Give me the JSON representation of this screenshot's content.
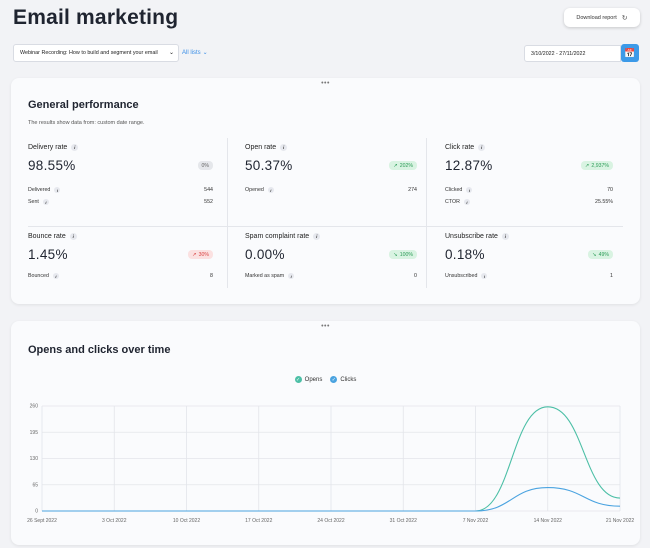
{
  "header": {
    "title": "Email marketing",
    "download_label": "Download report"
  },
  "filters": {
    "campaign_value": "Webinar Recording: How to build and segment your email",
    "all_lists_label": "All lists",
    "date_range": "3/10/2022 - 27/11/2022"
  },
  "performance": {
    "title": "General performance",
    "subtitle": "The results show data from: custom date range.",
    "metrics": [
      {
        "title": "Delivery rate",
        "value": "98.55%",
        "badge": "0%",
        "badge_type": "grey",
        "rows": [
          {
            "label": "Delivered",
            "value": "544"
          },
          {
            "label": "Sent",
            "value": "552"
          }
        ]
      },
      {
        "title": "Open rate",
        "value": "50.37%",
        "badge": "202%",
        "badge_type": "green",
        "badge_dir": "up",
        "rows": [
          {
            "label": "Opened",
            "value": "274"
          }
        ]
      },
      {
        "title": "Click rate",
        "value": "12.87%",
        "badge": "2,937%",
        "badge_type": "green",
        "badge_dir": "up",
        "rows": [
          {
            "label": "Clicked",
            "value": "70"
          },
          {
            "label": "CTOR",
            "value": "25.55%"
          }
        ]
      },
      {
        "title": "Bounce rate",
        "value": "1.45%",
        "badge": "30%",
        "badge_type": "red",
        "badge_dir": "up",
        "rows": [
          {
            "label": "Bounced",
            "value": "8"
          }
        ]
      },
      {
        "title": "Spam complaint rate",
        "value": "0.00%",
        "badge": "100%",
        "badge_type": "green",
        "badge_dir": "down",
        "rows": [
          {
            "label": "Marked as spam",
            "value": "0"
          }
        ]
      },
      {
        "title": "Unsubscribe rate",
        "value": "0.18%",
        "badge": "49%",
        "badge_type": "green",
        "badge_dir": "down",
        "rows": [
          {
            "label": "Unsubscribed",
            "value": "1"
          }
        ]
      }
    ]
  },
  "chart_section": {
    "title": "Opens and clicks over time"
  },
  "chart_data": {
    "type": "line",
    "title": "Opens and clicks over time",
    "x": [
      "26 Sept 2022",
      "3 Oct 2022",
      "10 Oct 2022",
      "17 Oct 2022",
      "24 Oct 2022",
      "31 Oct 2022",
      "7 Nov 2022",
      "14 Nov 2022",
      "21 Nov 2022"
    ],
    "series": [
      {
        "name": "Opens",
        "color": "#4cbfa6",
        "values": [
          0,
          0,
          0,
          0,
          0,
          0,
          0,
          258,
          32
        ]
      },
      {
        "name": "Clicks",
        "color": "#4aa3e0",
        "values": [
          0,
          0,
          0,
          0,
          0,
          0,
          0,
          58,
          12
        ]
      }
    ],
    "yticks": [
      "0",
      "65",
      "130",
      "195",
      "260"
    ],
    "ylim": [
      0,
      260
    ],
    "grid": true,
    "legend": "top-center"
  }
}
